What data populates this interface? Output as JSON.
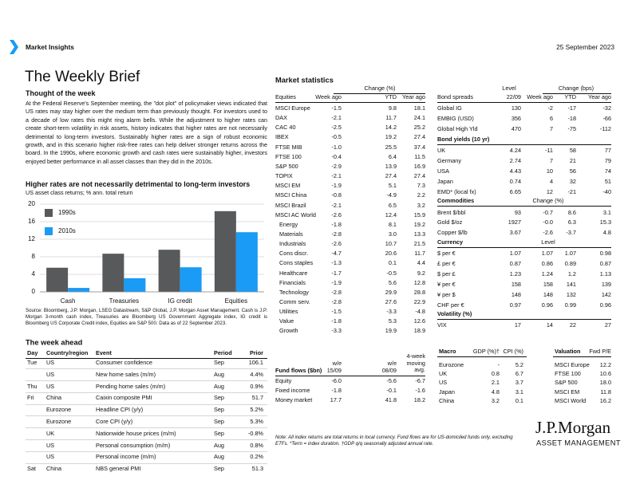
{
  "header": {
    "section": "Market Insights",
    "date": "25 September 2023"
  },
  "title": "The Weekly Brief",
  "thought": {
    "heading": "Thought of the week",
    "text": "At the Federal Reserve's September meeting, the \"dot plot\" of policymaker views indicated that US rates may stay higher over the medium term than previously thought. For investors used to a decade of low rates this might ring alarm bells. While the adjustment to higher rates can create short-term volatility in risk assets, history indicates that higher rates are not necessarily detrimental to long-term investors. Sustainably higher rates are a sign of robust economic growth, and in this scenario higher risk-free rates can help deliver stronger returns across the board. In the 1990s, where economic growth and cash rates were sustainably higher, investors enjoyed better performance in all asset classes than they did in the 2010s."
  },
  "chart_data": {
    "type": "bar",
    "title": "Higher rates are not necessarily detrimental to long-term investors",
    "subtitle": "US asset class returns; % ann. total return",
    "categories": [
      "Cash",
      "Treasuries",
      "IG credit",
      "Equities"
    ],
    "series": [
      {
        "name": "1990s",
        "color": "#58595b",
        "values": [
          5.5,
          8.7,
          9.6,
          18.4
        ]
      },
      {
        "name": "2010s",
        "color": "#1a9bf5",
        "values": [
          0.9,
          3.1,
          5.6,
          13.6
        ]
      }
    ],
    "ylim": [
      0,
      20
    ],
    "yticks": [
      0,
      4,
      8,
      12,
      16,
      20
    ],
    "grid": true,
    "source": "Source: Bloomberg, J.P. Morgan, LSEG Datastream, S&P Global, J.P. Morgan Asset Management. Cash is J.P. Morgan 3-month cash index, Treasuries are Bloomberg US Government Aggregate index, IG credit is Bloomberg US Corporate Credit index, Equities are S&P 500. Data as of 22 September 2023."
  },
  "week_ahead": {
    "heading": "The week ahead",
    "columns": [
      "Day",
      "Country/region",
      "Event",
      "Period",
      "Prior"
    ],
    "rows": [
      [
        "Tue",
        "US",
        "Consumer confidence",
        "Sep",
        "106.1"
      ],
      [
        null,
        "US",
        "New home sales (m/m)",
        "Aug",
        "4.4%"
      ],
      [
        "Thu",
        "US",
        "Pending home sales (m/m)",
        "Aug",
        "0.9%"
      ],
      [
        "Fri",
        "China",
        "Caixin composite PMI",
        "Sep",
        "51.7"
      ],
      [
        null,
        "Eurozone",
        "Headline CPI (y/y)",
        "Sep",
        "5.2%"
      ],
      [
        null,
        "Eurozone",
        "Core CPI (y/y)",
        "Sep",
        "5.3%"
      ],
      [
        null,
        "UK",
        "Nationwide house prices (m/m)",
        "Sep",
        "-0.8%"
      ],
      [
        null,
        "US",
        "Personal consumption (m/m)",
        "Aug",
        "0.8%"
      ],
      [
        null,
        "US",
        "Personal income (m/m)",
        "Aug",
        "0.2%"
      ],
      [
        "Sat",
        "China",
        "NBS general PMI",
        "Sep",
        "51.3"
      ]
    ]
  },
  "market_statistics": {
    "heading": "Market statistics",
    "equities": {
      "change_header": "Change (%)",
      "columns": [
        "Equities",
        "Week ago",
        "YTD",
        "Year ago"
      ],
      "regions": [
        [
          "MSCI Europe",
          "-1.5",
          "9.8",
          "18.1"
        ],
        [
          "DAX",
          "-2.1",
          "11.7",
          "24.1"
        ],
        [
          "CAC 40",
          "-2.5",
          "14.2",
          "25.2"
        ],
        [
          "IBEX",
          "-0.5",
          "19.2",
          "27.4"
        ],
        [
          "FTSE MIB",
          "-1.0",
          "25.5",
          "37.4"
        ],
        [
          "FTSE 100",
          "-0.4",
          "6.4",
          "11.5"
        ],
        [
          "S&P 500",
          "-2.9",
          "13.9",
          "16.9"
        ],
        [
          "TOPIX",
          "-2.1",
          "27.4",
          "27.4"
        ],
        [
          "MSCI EM",
          "-1.9",
          "5.1",
          "7.3"
        ],
        [
          "MSCI China",
          "-0.8",
          "-4.9",
          "2.2"
        ],
        [
          "MSCI Brazil",
          "-2.1",
          "6.5",
          "3.2"
        ],
        [
          "MSCI AC World",
          "-2.6",
          "12.4",
          "15.9"
        ]
      ],
      "sectors": [
        [
          "Energy",
          "-1.8",
          "8.1",
          "19.2"
        ],
        [
          "Materials",
          "-2.8",
          "3.0",
          "13.3"
        ],
        [
          "Industrials",
          "-2.6",
          "10.7",
          "21.5"
        ],
        [
          "Cons discr.",
          "-4.7",
          "20.6",
          "11.7"
        ],
        [
          "Cons staples",
          "-1.3",
          "0.1",
          "4.4"
        ],
        [
          "Healthcare",
          "-1.7",
          "-0.5",
          "9.2"
        ],
        [
          "Financials",
          "-1.9",
          "5.6",
          "12.8"
        ],
        [
          "Technology",
          "-2.8",
          "29.9",
          "28.8"
        ],
        [
          "Comm serv.",
          "-2.8",
          "27.6",
          "22.9"
        ],
        [
          "Utilities",
          "-1.5",
          "-3.3",
          "-4.8"
        ],
        [
          "Value",
          "-1.8",
          "5.3",
          "12.6"
        ],
        [
          "Growth",
          "-3.3",
          "19.9",
          "18.9"
        ]
      ]
    },
    "bonds": {
      "level_header": "Level",
      "change_header": "Change (bps)",
      "columns": [
        "Bond spreads",
        "22/09",
        "Week ago",
        "YTD",
        "Year ago"
      ],
      "rows": [
        [
          "Global IG",
          "130",
          "-2",
          "-17",
          "-32"
        ],
        [
          "EMBIG (USD)",
          "356",
          "6",
          "-18",
          "-66"
        ],
        [
          "Global High Yld",
          "470",
          "7",
          "-75",
          "-112"
        ]
      ]
    },
    "bond_yields": {
      "heading": "Bond yields (10 yr)",
      "rows": [
        [
          "UK",
          "4.24",
          "-11",
          "58",
          "77"
        ],
        [
          "Germany",
          "2.74",
          "7",
          "21",
          "79"
        ],
        [
          "USA",
          "4.43",
          "10",
          "56",
          "74"
        ],
        [
          "Japan",
          "0.74",
          "4",
          "32",
          "51"
        ],
        [
          "EMD* (local fx)",
          "6.65",
          "12",
          "-21",
          "-40"
        ]
      ]
    },
    "commodities": {
      "heading": "Commodities",
      "change_header": "Change (%)",
      "rows": [
        [
          "Brent $/bbl",
          "93",
          "-0.7",
          "8.6",
          "3.1"
        ],
        [
          "Gold $/oz",
          "1927",
          "-0.0",
          "6.3",
          "15.3"
        ],
        [
          "Copper $/lb",
          "3.67",
          "-2.6",
          "-3.7",
          "4.8"
        ]
      ]
    },
    "currency": {
      "heading": "Currency",
      "level_header": "Level",
      "rows": [
        [
          "$ per €",
          "1.07",
          "1.07",
          "1.07",
          "0.98"
        ],
        [
          "£ per €",
          "0.87",
          "0.86",
          "0.89",
          "0.87"
        ],
        [
          "$ per £",
          "1.23",
          "1.24",
          "1.2",
          "1.13"
        ],
        [
          "¥ per €",
          "158",
          "158",
          "141",
          "139"
        ],
        [
          "¥ per $",
          "148",
          "148",
          "132",
          "142"
        ],
        [
          "CHF per €",
          "0.97",
          "0.96",
          "0.99",
          "0.96"
        ]
      ]
    },
    "volatility": {
      "heading": "Volatility (%)",
      "rows": [
        [
          "VIX",
          "17",
          "14",
          "22",
          "27"
        ]
      ]
    },
    "fund_flows": {
      "columns": [
        "Fund flows ($bn)",
        "w/e 15/09",
        "w/e 08/09",
        "4-week moving avg."
      ],
      "rows": [
        [
          "Equity",
          "-6.0",
          "-5.6",
          "-6.7"
        ],
        [
          "Fixed income",
          "-1.8",
          "-0.1",
          "-1.6"
        ],
        [
          "Money market",
          "17.7",
          "41.8",
          "18.2"
        ]
      ]
    },
    "macro": {
      "columns": [
        "Macro",
        "GDP (%)†",
        "CPI (%)"
      ],
      "rows": [
        [
          "Eurozone",
          "-",
          "5.2"
        ],
        [
          "UK",
          "0.8",
          "6.7"
        ],
        [
          "US",
          "2.1",
          "3.7"
        ],
        [
          "Japan",
          "4.8",
          "3.1"
        ],
        [
          "China",
          "3.2",
          "0.1"
        ]
      ]
    },
    "valuation": {
      "columns": [
        "Valuation",
        "Fwd P/E"
      ],
      "rows": [
        [
          "MSCI Europe",
          "12.2"
        ],
        [
          "FTSE 100",
          "10.6"
        ],
        [
          "S&P 500",
          "18.0"
        ],
        [
          "MSCI EM",
          "11.8"
        ],
        [
          "MSCI World",
          "16.2"
        ]
      ]
    },
    "note": "Note: All index returns are total returns in local currency. Fund flows are for US-domiciled funds only, excluding ETFs. *Term = index duration. †GDP q/q seasonally adjusted annual rate."
  },
  "logo": {
    "name": "J.P.Morgan",
    "subtitle": "ASSET MANAGEMENT"
  }
}
